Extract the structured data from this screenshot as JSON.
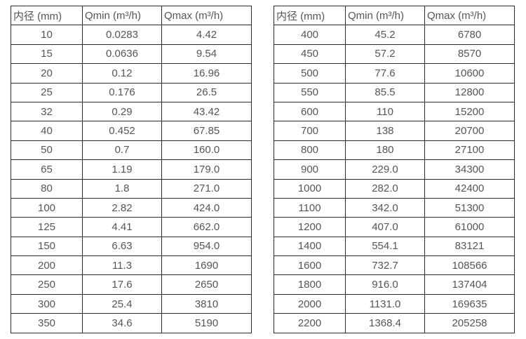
{
  "page": {
    "background_color": "#ffffff",
    "border_color": "#2b2b2b",
    "text_color": "#555555"
  },
  "tables": [
    {
      "name": "flow-table-small-diameters",
      "headers": [
        "内径 (mm)",
        "Qmin (m³/h)",
        "Qmax (m³/h)"
      ],
      "rows": [
        [
          "10",
          "0.0283",
          "4.42"
        ],
        [
          "15",
          "0.0636",
          "9.54"
        ],
        [
          "20",
          "0.12",
          "16.96"
        ],
        [
          "25",
          "0.176",
          "26.5"
        ],
        [
          "32",
          "0.29",
          "43.42"
        ],
        [
          "40",
          "0.452",
          "67.85"
        ],
        [
          "50",
          "0.7",
          "160.0"
        ],
        [
          "65",
          "1.19",
          "179.0"
        ],
        [
          "80",
          "1.8",
          "271.0"
        ],
        [
          "100",
          "2.82",
          "424.0"
        ],
        [
          "125",
          "4.41",
          "662.0"
        ],
        [
          "150",
          "6.63",
          "954.0"
        ],
        [
          "200",
          "11.3",
          "1690"
        ],
        [
          "250",
          "17.6",
          "2650"
        ],
        [
          "300",
          "25.4",
          "3810"
        ],
        [
          "350",
          "34.6",
          "5190"
        ]
      ]
    },
    {
      "name": "flow-table-large-diameters",
      "headers": [
        "内径 (mm)",
        "Qmin (m³/h)",
        "Qmax (m³/h)"
      ],
      "rows": [
        [
          "400",
          "45.2",
          "6780"
        ],
        [
          "450",
          "57.2",
          "8570"
        ],
        [
          "500",
          "77.6",
          "10600"
        ],
        [
          "550",
          "85.5",
          "12800"
        ],
        [
          "600",
          "110",
          "15200"
        ],
        [
          "700",
          "138",
          "20700"
        ],
        [
          "800",
          "180",
          "27100"
        ],
        [
          "900",
          "229.0",
          "34300"
        ],
        [
          "1000",
          "282.0",
          "42400"
        ],
        [
          "1100",
          "342.0",
          "51300"
        ],
        [
          "1200",
          "407.0",
          "61000"
        ],
        [
          "1400",
          "554.1",
          "83121"
        ],
        [
          "1600",
          "732.7",
          "108566"
        ],
        [
          "1800",
          "916.0",
          "137404"
        ],
        [
          "2000",
          "1131.0",
          "169635"
        ],
        [
          "2200",
          "1368.4",
          "205258"
        ]
      ]
    }
  ]
}
